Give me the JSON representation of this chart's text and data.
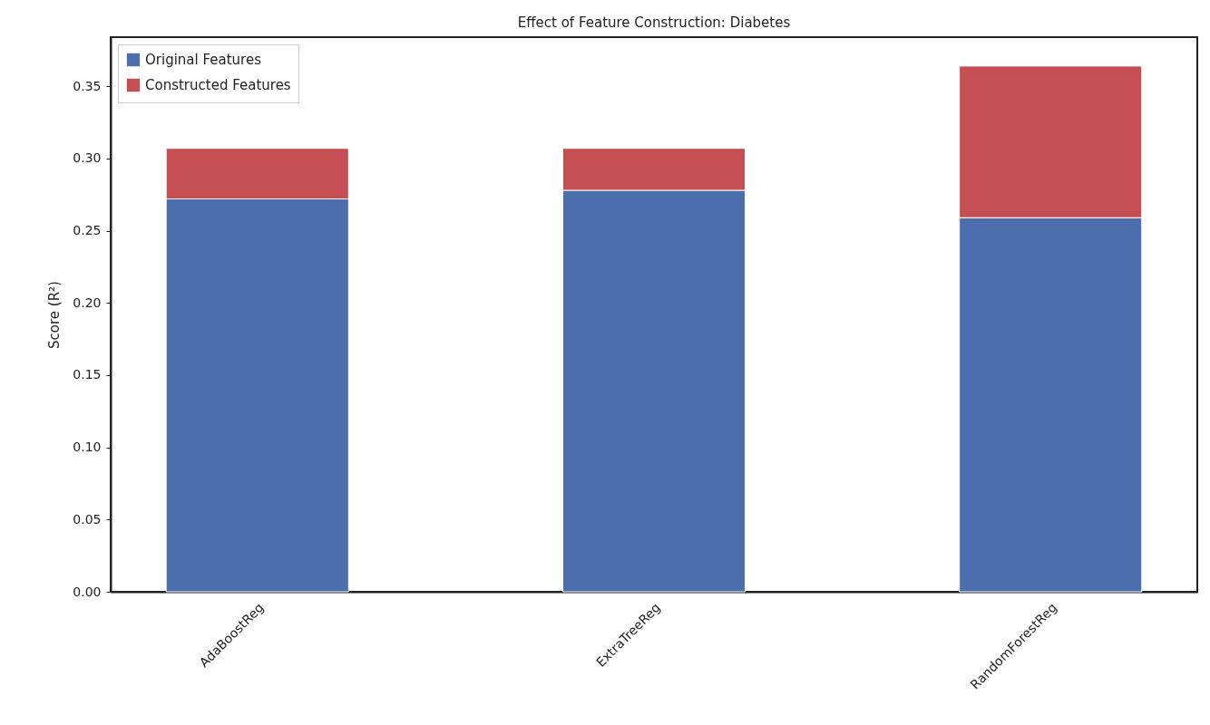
{
  "chart_data": {
    "type": "bar",
    "title": "Effect of Feature Construction: Diabetes",
    "ylabel": "Score (R²)",
    "categories": [
      "AdaBoostReg",
      "ExtraTreeReg",
      "RandomForestReg"
    ],
    "stacked": true,
    "series": [
      {
        "name": "Original Features",
        "color": "#4c6ead",
        "values": [
          0.272,
          0.278,
          0.259
        ]
      },
      {
        "name": "Constructed Features",
        "color": "#c44e52",
        "values": [
          0.035,
          0.029,
          0.105
        ]
      }
    ],
    "ylim": [
      0,
      0.384
    ],
    "yticks": [
      {
        "value": 0,
        "label": "0.00"
      },
      0.05,
      {
        "value": 0.1,
        "label": "0.10"
      },
      0.15,
      {
        "value": 0.2,
        "label": "0.20"
      },
      0.25,
      {
        "value": 0.3,
        "label": "0.30"
      },
      0.35
    ],
    "grid": false,
    "legend": "top left"
  }
}
